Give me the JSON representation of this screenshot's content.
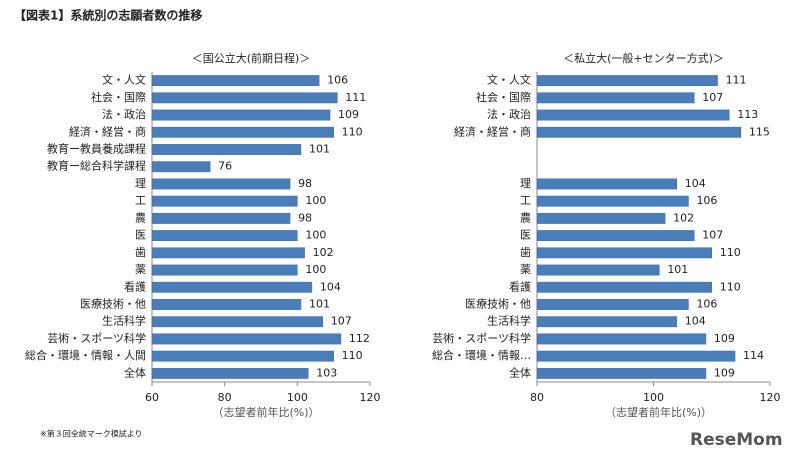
{
  "title": "【図表1】系統別の志願者数の推移",
  "footnote": "※第３回全統マーク模試より",
  "logo": "ReseMom",
  "chart_data": [
    {
      "type": "barh",
      "title": "＜国公立大(前期日程)＞",
      "x_label": "（志望者前年比(%)）",
      "categories": [
        "文・人文",
        "社会・国際",
        "法・政治",
        "経済・経営・商",
        "教育ー教員養成課程",
        "教育ー総合科学課程",
        "理",
        "工",
        "農",
        "医",
        "歯",
        "薬",
        "看護",
        "医療技術・他",
        "生活科学",
        "芸術・スポーツ科学",
        "総合・環境・情報・人間",
        "全体"
      ],
      "values": [
        106,
        111,
        109,
        110,
        101,
        76,
        98,
        100,
        98,
        100,
        102,
        100,
        104,
        101,
        107,
        112,
        110,
        103
      ],
      "color": "#4a7ebb",
      "xlim": [
        60,
        120
      ],
      "xticks": [
        60,
        80,
        100,
        120
      ],
      "grid": false
    },
    {
      "type": "barh",
      "title": "＜私立大(一般+センター方式)＞",
      "x_label": "（志望者前年比(%)）",
      "categories": [
        "文・人文",
        "社会・国際",
        "法・政治",
        "経済・経営・商",
        null,
        null,
        "理",
        "工",
        "農",
        "医",
        "歯",
        "薬",
        "看護",
        "医療技術・他",
        "生活科学",
        "芸術・スポーツ科学",
        "総合・環境・情報…",
        "全体"
      ],
      "values": [
        111,
        107,
        113,
        115,
        null,
        null,
        104,
        106,
        102,
        107,
        110,
        101,
        110,
        106,
        104,
        109,
        114,
        109
      ],
      "color": "#4a7ebb",
      "xlim": [
        80,
        120
      ],
      "xticks": [
        80,
        100,
        120
      ],
      "grid": false
    }
  ]
}
